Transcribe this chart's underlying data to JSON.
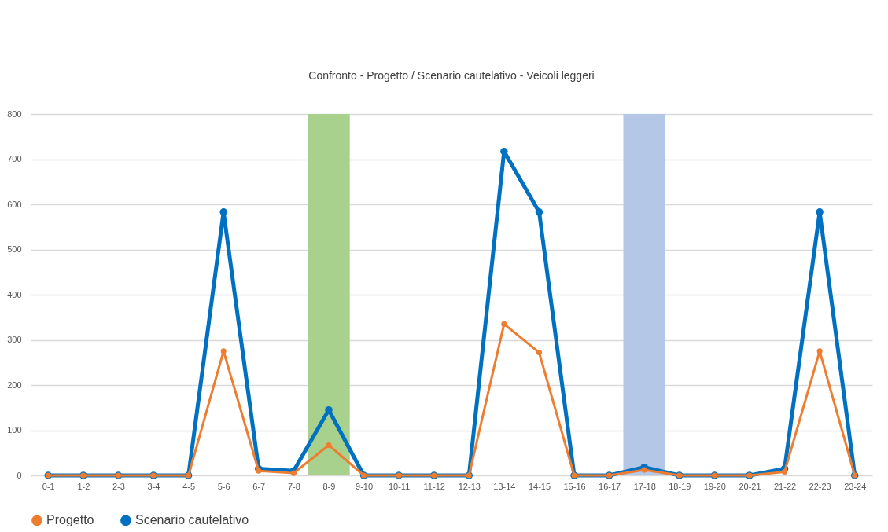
{
  "chart_data": {
    "type": "line",
    "title": "Confronto - Progetto / Scenario cautelativo - Veicoli leggeri",
    "categories": [
      "0-1",
      "1-2",
      "2-3",
      "3-4",
      "4-5",
      "5-6",
      "6-7",
      "7-8",
      "8-9",
      "9-10",
      "10-11",
      "11-12",
      "12-13",
      "13-14",
      "14-15",
      "15-16",
      "16-17",
      "17-18",
      "18-19",
      "19-20",
      "20-21",
      "21-22",
      "22-23",
      "23-24"
    ],
    "series": [
      {
        "name": "Progetto",
        "color": "#ed7d31",
        "values": [
          0,
          0,
          0,
          0,
          0,
          275,
          10,
          5,
          67,
          0,
          0,
          0,
          0,
          335,
          272,
          0,
          0,
          12,
          0,
          0,
          0,
          8,
          275,
          0
        ]
      },
      {
        "name": "Scenario cautelativo",
        "color": "#0070c0",
        "values": [
          0,
          0,
          0,
          0,
          0,
          583,
          15,
          10,
          145,
          0,
          0,
          0,
          0,
          717,
          583,
          0,
          0,
          18,
          0,
          0,
          0,
          15,
          583,
          0
        ]
      }
    ],
    "bands": [
      {
        "axis": "x",
        "from": "8-9",
        "to": "8-9",
        "color": "#a9d18e"
      },
      {
        "axis": "x",
        "from": "17-18",
        "to": "17-18",
        "color": "#b4c7e7"
      }
    ],
    "ylim": [
      0,
      800
    ],
    "yticks": [
      0,
      100,
      200,
      300,
      400,
      500,
      600,
      700,
      800
    ],
    "grid": "y",
    "legend": "bottom",
    "marker": "circle",
    "line_style": "solid"
  }
}
